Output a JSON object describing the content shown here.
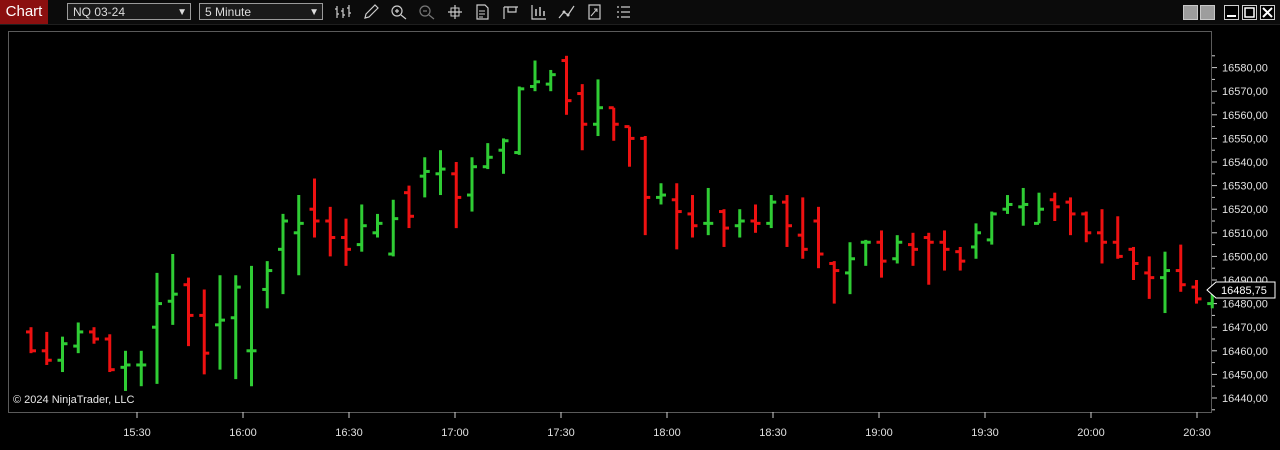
{
  "toolbar": {
    "chart_tab": "Chart",
    "instrument": "NQ 03-24",
    "interval": "5 Minute",
    "tools": [
      "bars-type-icon",
      "pencil-icon",
      "zoom-in-icon",
      "zoom-out-icon",
      "crosshair-icon",
      "data-box-icon",
      "chart-trader-icon",
      "strategies-icon",
      "indicators-icon",
      "drawing-tools-icon",
      "properties-icon",
      "menu-list-icon"
    ]
  },
  "window_controls": [
    "window-btn-1",
    "window-btn-2",
    "minimize-icon",
    "maximize-icon",
    "close-icon"
  ],
  "copyright": "© 2024 NinjaTrader, LLC",
  "colors": {
    "up": "#2fcc34",
    "down": "#ee1111",
    "background": "#000000",
    "axis": "#d0d0d0"
  },
  "chart_data": {
    "type": "ohlc-bar",
    "instrument": "NQ 03-24",
    "interval": "5 Minute",
    "x_ticks": [
      "15:30",
      "16:00",
      "16:30",
      "17:00",
      "17:30",
      "18:00",
      "18:30",
      "19:00",
      "19:30",
      "20:00",
      "20:30"
    ],
    "y_ticks": [
      "16440,00",
      "16450,00",
      "16460,00",
      "16470,00",
      "16480,00",
      "16490,00",
      "16500,00",
      "16510,00",
      "16520,00",
      "16530,00",
      "16540,00",
      "16550,00",
      "16560,00",
      "16570,00",
      "16580,00"
    ],
    "ylim": [
      16436,
      16590
    ],
    "last_price": "16485,75",
    "bars": [
      [
        16468,
        16470,
        16459,
        16460
      ],
      [
        16460,
        16468,
        16454,
        16456
      ],
      [
        16456,
        16466,
        16451,
        16463
      ],
      [
        16462,
        16472,
        16459,
        16468
      ],
      [
        16468,
        16470,
        16463,
        16465
      ],
      [
        16465,
        16467,
        16451,
        16452
      ],
      [
        16453,
        16460,
        16443,
        16454
      ],
      [
        16454,
        16460,
        16445,
        16454
      ],
      [
        16470,
        16493,
        16446,
        16480
      ],
      [
        16481,
        16501,
        16471,
        16484
      ],
      [
        16488,
        16491,
        16462,
        16475
      ],
      [
        16475,
        16486,
        16450,
        16459
      ],
      [
        16471,
        16492,
        16452,
        16473
      ],
      [
        16474,
        16492,
        16448,
        16487
      ],
      [
        16460,
        16496,
        16445,
        16460
      ],
      [
        16486,
        16498,
        16478,
        16494
      ],
      [
        16503,
        16518,
        16484,
        16515
      ],
      [
        16510,
        16526,
        16492,
        16514
      ],
      [
        16520,
        16533,
        16508,
        16515
      ],
      [
        16515,
        16521,
        16500,
        16508
      ],
      [
        16508,
        16516,
        16496,
        16503
      ],
      [
        16505,
        16522,
        16502,
        16513
      ],
      [
        16510,
        16518,
        16508,
        16514
      ],
      [
        16501,
        16524,
        16500,
        16516
      ],
      [
        16527,
        16530,
        16512,
        16517
      ],
      [
        16534,
        16542,
        16525,
        16536
      ],
      [
        16535,
        16545,
        16526,
        16537
      ],
      [
        16535,
        16540,
        16512,
        16525
      ],
      [
        16526,
        16542,
        16519,
        16538
      ],
      [
        16538,
        16548,
        16537,
        16542
      ],
      [
        16545,
        16550,
        16535,
        16549
      ],
      [
        16544,
        16572,
        16543,
        16571
      ],
      [
        16572,
        16583,
        16570,
        16574
      ],
      [
        16573,
        16579,
        16570,
        16577
      ],
      [
        16583,
        16585,
        16560,
        16566
      ],
      [
        16569,
        16573,
        16545,
        16556
      ],
      [
        16556,
        16575,
        16551,
        16563
      ],
      [
        16563,
        16563,
        16549,
        16556
      ],
      [
        16555,
        16555,
        16538,
        16550
      ],
      [
        16550,
        16551,
        16509,
        16525
      ],
      [
        16525,
        16531,
        16522,
        16526
      ],
      [
        16524,
        16531,
        16503,
        16519
      ],
      [
        16518,
        16526,
        16508,
        16513
      ],
      [
        16514,
        16529,
        16509,
        16514
      ],
      [
        16519,
        16520,
        16504,
        16512
      ],
      [
        16513,
        16520,
        16508,
        16515
      ],
      [
        16515,
        16522,
        16510,
        16514
      ],
      [
        16514,
        16526,
        16512,
        16523
      ],
      [
        16523,
        16526,
        16504,
        16513
      ],
      [
        16509,
        16525,
        16499,
        16503
      ],
      [
        16515,
        16521,
        16495,
        16501
      ],
      [
        16497,
        16498,
        16480,
        16494
      ],
      [
        16493,
        16506,
        16484,
        16499
      ],
      [
        16506,
        16507,
        16496,
        16506
      ],
      [
        16506,
        16511,
        16491,
        16498
      ],
      [
        16499,
        16509,
        16497,
        16506
      ],
      [
        16505,
        16510,
        16496,
        16503
      ],
      [
        16508,
        16510,
        16488,
        16506
      ],
      [
        16506,
        16511,
        16494,
        16503
      ],
      [
        16502,
        16504,
        16494,
        16498
      ],
      [
        16504,
        16514,
        16499,
        16510
      ],
      [
        16507,
        16519,
        16505,
        16518
      ],
      [
        16520,
        16526,
        16518,
        16522
      ],
      [
        16521,
        16529,
        16513,
        16522
      ],
      [
        16514,
        16527,
        16514,
        16520
      ],
      [
        16524,
        16527,
        16515,
        16521
      ],
      [
        16523,
        16525,
        16509,
        16518
      ],
      [
        16518,
        16519,
        16506,
        16510
      ],
      [
        16510,
        16520,
        16497,
        16506
      ],
      [
        16506,
        16517,
        16499,
        16500
      ],
      [
        16503,
        16504,
        16490,
        16497
      ],
      [
        16493,
        16500,
        16482,
        16491
      ],
      [
        16491,
        16502,
        16476,
        16494
      ],
      [
        16494,
        16505,
        16485,
        16488
      ],
      [
        16487,
        16490,
        16480,
        16482
      ],
      [
        16480,
        16486,
        16478,
        16485
      ]
    ]
  }
}
